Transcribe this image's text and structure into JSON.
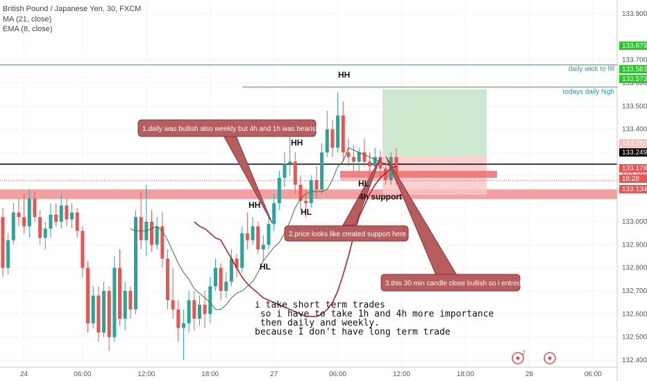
{
  "chart_info": {
    "symbol_line": "British Pound / Japanese Yen, 30, FXCM",
    "ma_label": "MA (21, close)",
    "ema_label": "EMA (8, close)"
  },
  "chart_data": {
    "type": "candlestick",
    "ylim": [
      132.37,
      133.96
    ],
    "y_ticks": [
      133.9,
      133.7,
      133.6,
      133.5,
      133.4,
      133.3,
      133.2,
      133.0,
      132.9,
      132.8,
      132.7,
      132.6,
      132.5,
      132.4
    ],
    "y_tick_labels": [
      "133.900",
      "133.700",
      "133.600",
      "133.500",
      "133.400",
      "133.300",
      "133.200",
      "133.000",
      "132.900",
      "132.800",
      "132.700",
      "132.600",
      "132.500",
      "132.400"
    ],
    "x_ticks": [
      {
        "label": "24",
        "bar": 4
      },
      {
        "label": "06:00",
        "bar": 15
      },
      {
        "label": "12:00",
        "bar": 27
      },
      {
        "label": "18:00",
        "bar": 39
      },
      {
        "label": "27",
        "bar": 51
      },
      {
        "label": "06:00",
        "bar": 63
      },
      {
        "label": "12:00",
        "bar": 75
      },
      {
        "label": "18:00",
        "bar": 87
      },
      {
        "label": "28",
        "bar": 99
      },
      {
        "label": "06:00",
        "bar": 111
      }
    ],
    "candles": [
      [
        133.02,
        133.06,
        132.76,
        132.8
      ],
      [
        132.8,
        132.95,
        132.77,
        132.92
      ],
      [
        132.92,
        133.08,
        132.9,
        133.04
      ],
      [
        133.04,
        133.1,
        132.98,
        133.02
      ],
      [
        133.02,
        133.12,
        132.95,
        132.98
      ],
      [
        132.98,
        133.14,
        132.93,
        133.1
      ],
      [
        133.1,
        133.13,
        133.0,
        133.02
      ],
      [
        133.02,
        133.05,
        132.9,
        132.93
      ],
      [
        132.93,
        133.0,
        132.88,
        132.97
      ],
      [
        132.97,
        133.08,
        132.93,
        133.03
      ],
      [
        133.03,
        133.08,
        132.98,
        133.0
      ],
      [
        133.0,
        133.12,
        132.97,
        133.07
      ],
      [
        133.07,
        133.1,
        132.98,
        133.01
      ],
      [
        133.01,
        133.08,
        132.97,
        133.04
      ],
      [
        133.04,
        133.06,
        132.93,
        132.96
      ],
      [
        132.96,
        132.98,
        132.76,
        132.8
      ],
      [
        132.8,
        132.83,
        132.52,
        132.56
      ],
      [
        132.56,
        132.72,
        132.54,
        132.68
      ],
      [
        132.68,
        132.72,
        132.48,
        132.52
      ],
      [
        132.52,
        132.74,
        132.5,
        132.7
      ],
      [
        132.7,
        132.72,
        132.44,
        132.5
      ],
      [
        132.5,
        132.85,
        132.48,
        132.8
      ],
      [
        132.8,
        132.88,
        132.55,
        132.58
      ],
      [
        132.58,
        132.74,
        132.53,
        132.7
      ],
      [
        132.7,
        132.72,
        132.58,
        132.62
      ],
      [
        132.62,
        133.05,
        132.6,
        133.02
      ],
      [
        133.02,
        133.13,
        132.88,
        132.92
      ],
      [
        132.92,
        133.16,
        132.85,
        133.0
      ],
      [
        133.0,
        133.05,
        132.87,
        132.9
      ],
      [
        132.9,
        133.02,
        132.88,
        132.98
      ],
      [
        132.98,
        133.04,
        132.8,
        132.84
      ],
      [
        132.84,
        132.88,
        132.62,
        132.66
      ],
      [
        132.66,
        132.8,
        132.58,
        132.62
      ],
      [
        132.62,
        132.66,
        132.48,
        132.54
      ],
      [
        132.54,
        132.62,
        132.4,
        132.56
      ],
      [
        132.56,
        132.7,
        132.52,
        132.66
      ],
      [
        132.66,
        132.7,
        132.53,
        132.58
      ],
      [
        132.58,
        132.68,
        132.55,
        132.64
      ],
      [
        132.64,
        132.7,
        132.54,
        132.6
      ],
      [
        132.6,
        132.76,
        132.56,
        132.72
      ],
      [
        132.72,
        132.84,
        132.7,
        132.8
      ],
      [
        132.8,
        132.82,
        132.66,
        132.7
      ],
      [
        132.7,
        132.78,
        132.67,
        132.74
      ],
      [
        132.74,
        132.88,
        132.72,
        132.84
      ],
      [
        132.84,
        132.86,
        132.76,
        132.8
      ],
      [
        132.8,
        132.98,
        132.78,
        132.95
      ],
      [
        132.95,
        133.04,
        132.88,
        132.92
      ],
      [
        132.92,
        133.02,
        132.9,
        132.98
      ],
      [
        132.98,
        133.0,
        132.86,
        132.88
      ],
      [
        132.88,
        132.94,
        132.83,
        132.9
      ],
      [
        132.9,
        133.02,
        132.88,
        132.99
      ],
      [
        132.99,
        133.12,
        132.96,
        133.08
      ],
      [
        133.08,
        133.22,
        133.05,
        133.19
      ],
      [
        133.19,
        133.3,
        133.15,
        133.25
      ],
      [
        133.25,
        133.42,
        133.2,
        133.26
      ],
      [
        133.26,
        133.3,
        133.12,
        133.16
      ],
      [
        133.16,
        133.2,
        133.05,
        133.09
      ],
      [
        133.09,
        133.14,
        133.02,
        133.08
      ],
      [
        133.08,
        133.2,
        133.06,
        133.18
      ],
      [
        133.18,
        133.24,
        133.1,
        133.14
      ],
      [
        133.14,
        133.34,
        133.12,
        133.3
      ],
      [
        133.3,
        133.48,
        133.28,
        133.4
      ],
      [
        133.4,
        133.44,
        133.28,
        133.32
      ],
      [
        133.32,
        133.56,
        133.3,
        133.46
      ],
      [
        133.46,
        133.52,
        133.26,
        133.3
      ],
      [
        133.3,
        133.36,
        133.24,
        133.28
      ],
      [
        133.28,
        133.33,
        133.22,
        133.26
      ],
      [
        133.26,
        133.32,
        133.22,
        133.3
      ],
      [
        133.3,
        133.36,
        133.24,
        133.26
      ],
      [
        133.26,
        133.3,
        133.2,
        133.24
      ],
      [
        133.24,
        133.32,
        133.22,
        133.28
      ],
      [
        133.28,
        133.31,
        133.19,
        133.23
      ],
      [
        133.23,
        133.26,
        133.16,
        133.18
      ],
      [
        133.18,
        133.3,
        133.16,
        133.28
      ],
      [
        133.28,
        133.32,
        133.16,
        133.18
      ]
    ],
    "ma21": [
      133.0,
      132.98,
      132.97,
      132.95,
      132.93,
      132.92,
      132.88,
      132.84,
      132.8,
      132.76,
      132.73,
      132.71,
      132.69,
      132.67,
      132.66,
      132.65,
      132.64,
      132.63,
      132.62,
      132.61,
      132.6,
      132.59,
      132.59,
      132.59,
      132.6,
      132.62,
      132.65,
      132.7,
      132.77,
      132.85,
      132.94,
      133.02,
      133.07,
      133.12,
      133.16,
      133.19,
      133.21,
      133.23,
      133.24
    ],
    "ma21_start_bar": 36,
    "ema8": [
      132.97,
      132.96,
      132.96,
      132.96,
      132.97,
      132.98,
      132.96,
      132.92,
      132.87,
      132.82,
      132.78,
      132.75,
      132.71,
      132.69,
      132.67,
      132.65,
      132.62,
      132.62,
      132.64,
      132.67,
      132.69,
      132.7,
      132.72,
      132.74,
      132.78,
      132.83,
      132.86,
      132.89,
      132.91,
      132.95,
      133.0,
      133.06,
      133.1,
      133.12,
      133.13,
      133.13,
      133.13,
      133.14,
      133.18,
      133.24,
      133.26,
      133.32,
      133.31,
      133.3,
      133.29,
      133.28,
      133.27,
      133.26,
      133.25,
      133.24,
      133.24
    ],
    "ema8_start_bar": 24,
    "levels": [
      {
        "price": 133.679,
        "label": "133.679",
        "color": "#22cc22",
        "text": "daily wick to fill"
      },
      {
        "price": 133.583,
        "label": "133.583",
        "color": "#22cc22",
        "text": "todays daily high"
      },
      {
        "price": 133.249,
        "label": "133.249",
        "color": "#000000",
        "text": ""
      }
    ],
    "support_zone": {
      "top": 133.14,
      "bottom": 133.12,
      "color": "#f4a0a0"
    },
    "position_box": {
      "target": 133.573,
      "entry": 133.282,
      "stop": 133.17
    },
    "price_tags": [
      {
        "label": "133.679",
        "bg": "#22cc22"
      },
      {
        "label": "133.583",
        "bg": "#22cc22"
      },
      {
        "label": "133.573",
        "bg": "#22cc22"
      },
      {
        "label": "133.282",
        "bg": "#f6c0c0"
      },
      {
        "label": "133.249",
        "bg": "#000000"
      },
      {
        "label": "133.178",
        "bg": "#ef5350"
      },
      {
        "label": "18:28",
        "bg": "#ef5350"
      },
      {
        "label": "133.134",
        "bg": "#ef5350"
      }
    ]
  },
  "annotations": {
    "note1": "1.daily was bullish also weekly but 4h and 1h was bearish",
    "note2": "2.price looks like created support here",
    "note3": "3.this 30 min candle close bullish so i entred",
    "hh_labels": [
      "HH",
      "HH",
      "HH"
    ],
    "hl_labels": [
      "HL",
      "HL",
      "HL"
    ],
    "support_label": "4h support",
    "comment_lines": [
      "i take short term trades",
      " so i have to take 1h and 4h more importance",
      " then daily and weekly.",
      "because I don't have long term trade"
    ],
    "event_marker_count": "2"
  }
}
